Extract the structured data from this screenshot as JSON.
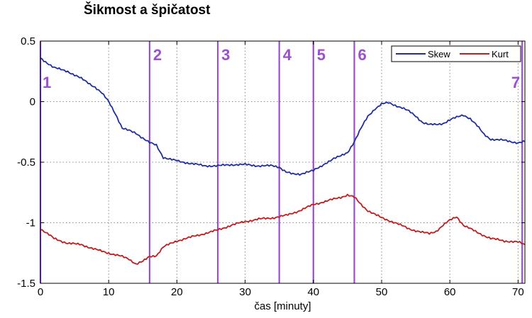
{
  "chart_data": {
    "type": "line",
    "title": "Šikmost a špičatost",
    "xlabel": "čas [minuty]",
    "ylabel": "",
    "xlim": [
      0,
      71
    ],
    "ylim": [
      -1.5,
      0.5
    ],
    "grid": true,
    "legend_position": "top-right",
    "x_ticks": [
      0,
      10,
      20,
      30,
      40,
      50,
      60,
      70
    ],
    "y_ticks": [
      0.5,
      0,
      -0.5,
      -1,
      -1.5
    ],
    "x_tick_labels": [
      "0",
      "10",
      "20",
      "30",
      "40",
      "50",
      "60",
      "70"
    ],
    "y_tick_labels": [
      "0.5",
      "0",
      "-0.5",
      "-1",
      "-1.5"
    ],
    "series": [
      {
        "name": "Skew",
        "color": "#1f2fa0",
        "x": [
          0,
          2,
          4,
          6,
          8,
          9,
          10,
          11,
          12,
          14,
          15,
          16,
          17,
          18,
          20,
          22,
          24,
          26,
          28,
          30,
          32,
          34,
          35,
          36,
          37,
          38,
          39,
          40,
          41,
          42,
          43,
          44,
          45,
          46,
          47,
          48,
          49,
          50,
          51,
          52,
          53,
          54,
          55,
          56,
          57,
          58,
          59,
          60,
          61,
          62,
          63,
          64,
          65,
          66,
          68,
          70,
          71
        ],
        "y": [
          0.36,
          0.28,
          0.25,
          0.19,
          0.12,
          0.07,
          0.0,
          -0.1,
          -0.22,
          -0.26,
          -0.3,
          -0.34,
          -0.36,
          -0.46,
          -0.49,
          -0.51,
          -0.53,
          -0.53,
          -0.52,
          -0.52,
          -0.53,
          -0.53,
          -0.54,
          -0.58,
          -0.6,
          -0.6,
          -0.58,
          -0.57,
          -0.54,
          -0.5,
          -0.47,
          -0.45,
          -0.42,
          -0.33,
          -0.22,
          -0.12,
          -0.06,
          -0.02,
          -0.01,
          -0.03,
          -0.05,
          -0.08,
          -0.12,
          -0.17,
          -0.19,
          -0.19,
          -0.18,
          -0.15,
          -0.13,
          -0.11,
          -0.14,
          -0.2,
          -0.27,
          -0.31,
          -0.32,
          -0.34,
          -0.33
        ]
      },
      {
        "name": "Kurt",
        "color": "#c41c1c",
        "x": [
          0,
          2,
          4,
          6,
          8,
          10,
          12,
          13,
          14,
          15,
          16,
          17,
          18,
          20,
          22,
          24,
          26,
          28,
          30,
          32,
          34,
          35,
          36,
          38,
          40,
          42,
          44,
          45,
          46,
          47,
          48,
          50,
          52,
          54,
          56,
          57,
          58,
          59,
          60,
          61,
          62,
          64,
          66,
          68,
          70,
          71
        ],
        "y": [
          -1.05,
          -1.13,
          -1.17,
          -1.18,
          -1.22,
          -1.25,
          -1.28,
          -1.3,
          -1.34,
          -1.32,
          -1.28,
          -1.27,
          -1.2,
          -1.15,
          -1.12,
          -1.09,
          -1.06,
          -1.02,
          -0.99,
          -0.97,
          -0.96,
          -0.95,
          -0.94,
          -0.9,
          -0.85,
          -0.82,
          -0.79,
          -0.77,
          -0.79,
          -0.85,
          -0.9,
          -0.96,
          -1.0,
          -1.05,
          -1.08,
          -1.09,
          -1.07,
          -1.02,
          -0.98,
          -0.95,
          -1.02,
          -1.08,
          -1.13,
          -1.15,
          -1.16,
          -1.18
        ]
      }
    ],
    "vertical_markers": [
      {
        "label": "1",
        "x": 0
      },
      {
        "label": "2",
        "x": 16
      },
      {
        "label": "3",
        "x": 26
      },
      {
        "label": "4",
        "x": 35
      },
      {
        "label": "5",
        "x": 40
      },
      {
        "label": "6",
        "x": 46
      },
      {
        "label": "7",
        "x": 70.6
      }
    ],
    "marker_color": "#9b4fd1"
  }
}
